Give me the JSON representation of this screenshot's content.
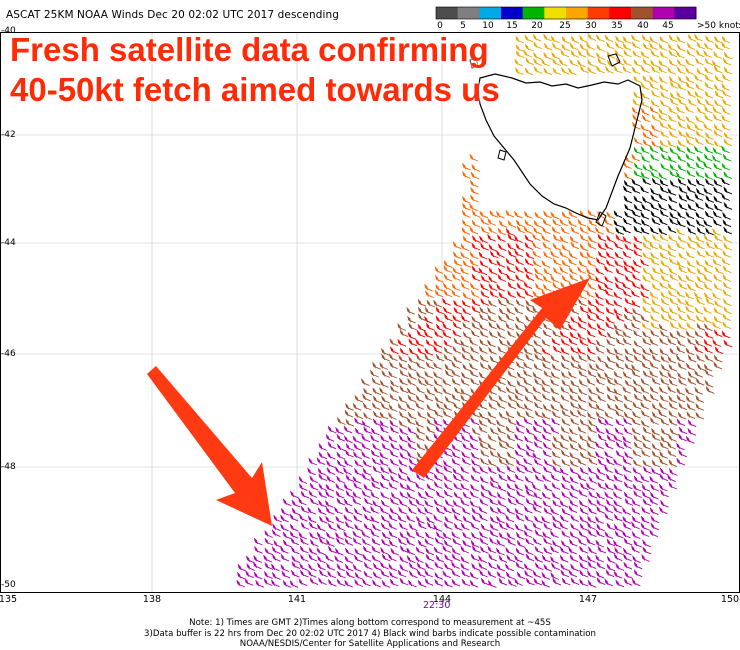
{
  "header": {
    "title": "ASCAT 25KM NOAA Winds  Dec 20 02:02 UTC 2017 descending"
  },
  "legend": {
    "labels": [
      "0",
      "5",
      "10",
      "15",
      "20",
      "25",
      "30",
      "35",
      "40",
      "45",
      ">50 knots"
    ],
    "colors": [
      "#4d4d4d",
      "#7f7f7f",
      "#00a8e8",
      "#0000c8",
      "#00b400",
      "#f0e000",
      "#ffa500",
      "#ff3c00",
      "#ff0000",
      "#a0522d",
      "#b000b0",
      "#5a00a0"
    ]
  },
  "headline": {
    "line1": "Fresh satellite data confirming",
    "line2": "40-50kt fetch aimed towards us",
    "color": "#ff2a06"
  },
  "axes": {
    "lat_labels": [
      "-40",
      "-42",
      "-44",
      "-46",
      "-48",
      "-50"
    ],
    "lon_labels": [
      "135",
      "138",
      "141",
      "144",
      "147",
      "150"
    ]
  },
  "time_label": "22:30",
  "notes": [
    "Note: 1) Times are GMT 2)Times along bottom correspond to measurement at ~45S",
    "3)Data buffer is 22 hrs from Dec 20 02:02 UTC 2017 4) Black wind barbs indicate possible contamination",
    "NOAA/NESDIS/Center for Satellite Applications and Research"
  ],
  "wind_colors": {
    "purple": "#b000b0",
    "brown": "#a0522d",
    "red": "#ff0000",
    "orange": "#ff6600",
    "gold": "#e8a800",
    "green": "#00b400",
    "black": "#000000"
  },
  "arrow_color": "#ff3a12"
}
